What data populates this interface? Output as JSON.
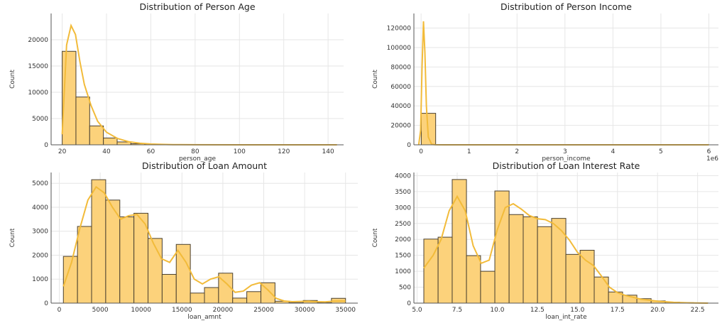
{
  "figure": {
    "colors": {
      "bar_fill": "#fcd27b",
      "bar_edge": "#4a4030",
      "kde": "#f2bb3a",
      "grid": "#e6e6e6"
    }
  },
  "chart_data": [
    {
      "type": "bar",
      "title": "Distribution of Person Age",
      "xlabel": "person_age",
      "ylabel": "Count",
      "xlim": [
        15,
        147
      ],
      "ylim": [
        0,
        25000
      ],
      "xticks": [
        20,
        40,
        60,
        80,
        100,
        120,
        140
      ],
      "yticks": [
        0,
        5000,
        10000,
        15000,
        20000
      ],
      "bin_edges": [
        20,
        26.2,
        32.4,
        38.6,
        44.8,
        51,
        57.2,
        63.4,
        69.6,
        75.8,
        82,
        88.2,
        94.4,
        100.6,
        106.8,
        113,
        119.2,
        125.4,
        131.6,
        137.8,
        144
      ],
      "values": [
        17800,
        9100,
        3600,
        1300,
        550,
        200,
        80,
        30,
        10,
        5,
        0,
        0,
        0,
        0,
        0,
        0,
        0,
        0,
        0,
        5
      ],
      "kde": {
        "x": [
          20,
          22,
          24,
          26,
          28,
          30,
          33,
          36,
          40,
          45,
          50,
          55,
          60,
          65,
          70,
          80,
          100,
          120,
          140,
          144
        ],
        "y": [
          2000,
          19000,
          22700,
          21000,
          15800,
          11500,
          7500,
          4500,
          2400,
          1200,
          600,
          300,
          150,
          80,
          40,
          20,
          5,
          0,
          0,
          0
        ]
      },
      "grid": true
    },
    {
      "type": "bar",
      "title": "Distribution of Person Income",
      "xlabel": "person_income",
      "ylabel": "Count",
      "offset_label": "1e6",
      "xlim": [
        -0.15,
        6.2
      ],
      "ylim": [
        0,
        135000
      ],
      "xticks": [
        0,
        1,
        2,
        3,
        4,
        5,
        6
      ],
      "yticks": [
        0,
        20000,
        40000,
        60000,
        80000,
        100000,
        120000
      ],
      "bin_edges": [
        0.004,
        0.304,
        0.604,
        0.904,
        1.204,
        1.504,
        1.804,
        2.104,
        2.404,
        2.704,
        3.004,
        3.304,
        3.604,
        3.904,
        4.204,
        4.504,
        4.804,
        5.104,
        5.404,
        5.704,
        6.004
      ],
      "values": [
        32400,
        120,
        20,
        8,
        4,
        2,
        1,
        0,
        0,
        0,
        0,
        0,
        0,
        0,
        0,
        0,
        0,
        0,
        0,
        1
      ],
      "kde": {
        "x": [
          -0.05,
          -0.01,
          0.02,
          0.05,
          0.08,
          0.11,
          0.15,
          0.22,
          0.3,
          0.5,
          1,
          2,
          4,
          6
        ],
        "y": [
          0,
          15000,
          80000,
          127000,
          95000,
          40000,
          8000,
          500,
          100,
          0,
          0,
          0,
          0,
          0
        ]
      },
      "grid": true
    },
    {
      "type": "bar",
      "title": "Distribution of Loan Amount",
      "xlabel": "loan_amnt",
      "ylabel": "Count",
      "xlim": [
        -1000,
        36500
      ],
      "ylim": [
        0,
        5450
      ],
      "xticks": [
        0,
        5000,
        10000,
        15000,
        20000,
        25000,
        30000,
        35000
      ],
      "yticks": [
        0,
        1000,
        2000,
        3000,
        4000,
        5000
      ],
      "bin_edges": [
        500,
        2225,
        3950,
        5675,
        7400,
        9125,
        10850,
        12575,
        14300,
        16025,
        17750,
        19475,
        21200,
        22925,
        24650,
        26375,
        28100,
        29825,
        31550,
        33275,
        35000
      ],
      "values": [
        1950,
        3200,
        5150,
        4300,
        3600,
        3750,
        2700,
        1200,
        2450,
        420,
        650,
        1250,
        210,
        480,
        850,
        80,
        20,
        110,
        20,
        200
      ],
      "kde": {
        "x": [
          500,
          1500,
          2500,
          3500,
          4500,
          5500,
          6500,
          7500,
          8500,
          9500,
          10500,
          11500,
          12500,
          13500,
          14500,
          15500,
          16500,
          17500,
          18500,
          19500,
          20500,
          21500,
          22500,
          23500,
          24500,
          25500,
          26500,
          27500,
          28500,
          29500,
          30500,
          31500,
          32500,
          33500,
          34500,
          35000
        ],
        "y": [
          700,
          1700,
          3100,
          4300,
          4850,
          4600,
          4000,
          3500,
          3650,
          3700,
          3300,
          2500,
          1850,
          1700,
          2200,
          1700,
          1000,
          800,
          1000,
          1100,
          800,
          450,
          500,
          750,
          850,
          550,
          200,
          90,
          60,
          70,
          80,
          60,
          50,
          80,
          90,
          80
        ]
      },
      "grid": true
    },
    {
      "type": "bar",
      "title": "Distribution of Loan Interest Rate",
      "xlabel": "loan_int_rate",
      "ylabel": "Count",
      "xlim": [
        4.8,
        23.8
      ],
      "ylim": [
        0,
        4100
      ],
      "xticks": [
        5.0,
        7.5,
        10.0,
        12.5,
        15.0,
        17.5,
        20.0,
        22.5
      ],
      "xtick_labels": [
        "5.0",
        "7.5",
        "10.0",
        "12.5",
        "15.0",
        "17.5",
        "20.0",
        "22.5"
      ],
      "yticks": [
        0,
        500,
        1000,
        1500,
        2000,
        2500,
        3000,
        3500,
        4000
      ],
      "bin_edges": [
        5.42,
        6.31,
        7.19,
        8.08,
        8.96,
        9.85,
        10.74,
        11.62,
        12.51,
        13.39,
        14.28,
        15.17,
        16.05,
        16.94,
        17.82,
        18.71,
        19.6,
        20.48,
        21.37,
        22.25,
        23.14
      ],
      "values": [
        2010,
        2070,
        3880,
        1490,
        1000,
        3520,
        2780,
        2710,
        2400,
        2660,
        1530,
        1660,
        820,
        350,
        250,
        140,
        70,
        30,
        15,
        5
      ],
      "kde": {
        "x": [
          5.42,
          6.0,
          6.5,
          7.0,
          7.5,
          8.0,
          8.5,
          9.0,
          9.5,
          10.0,
          10.5,
          11.0,
          11.5,
          12.0,
          12.5,
          13.0,
          13.5,
          14.0,
          14.5,
          15.0,
          15.5,
          16.0,
          16.5,
          17.0,
          17.5,
          18.0,
          19.0,
          20.0,
          21.0,
          22.0,
          23.14
        ],
        "y": [
          1100,
          1500,
          2000,
          2900,
          3350,
          2900,
          1800,
          1250,
          1350,
          2300,
          3000,
          3120,
          2950,
          2750,
          2650,
          2620,
          2500,
          2280,
          1980,
          1600,
          1350,
          1180,
          850,
          500,
          330,
          240,
          120,
          60,
          25,
          10,
          0
        ]
      },
      "grid": true
    }
  ]
}
